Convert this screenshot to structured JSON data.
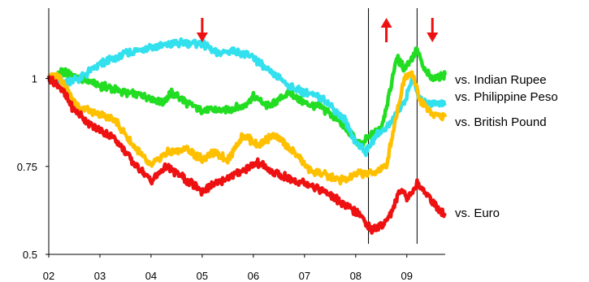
{
  "chart_data": {
    "type": "line",
    "title": "",
    "xlabel": "",
    "ylabel": "",
    "xlim": [
      2002,
      2009.75
    ],
    "ylim": [
      0.5,
      1.2
    ],
    "x_ticks": [
      {
        "value": 2002,
        "label": "02"
      },
      {
        "value": 2003,
        "label": "03"
      },
      {
        "value": 2004,
        "label": "04"
      },
      {
        "value": 2005,
        "label": "05"
      },
      {
        "value": 2006,
        "label": "06"
      },
      {
        "value": 2007,
        "label": "07"
      },
      {
        "value": 2008,
        "label": "08"
      },
      {
        "value": 2009,
        "label": "09"
      }
    ],
    "y_ticks": [
      {
        "value": 0.5,
        "label": "0.5"
      },
      {
        "value": 0.75,
        "label": "0.75"
      },
      {
        "value": 1.0,
        "label": "1"
      }
    ],
    "grid": false,
    "legend": "line-end labels at right",
    "series": [
      {
        "name": "vs. Indian Rupee",
        "color": "#22dd22",
        "x": [
          2002,
          2002.3,
          2002.6,
          2003,
          2003.5,
          2003.9,
          2004.2,
          2004.4,
          2004.7,
          2005,
          2005.4,
          2005.8,
          2006,
          2006.3,
          2006.7,
          2007,
          2007.3,
          2007.6,
          2007.9,
          2008.1,
          2008.3,
          2008.5,
          2008.65,
          2008.8,
          2008.95,
          2009.05,
          2009.2,
          2009.35,
          2009.5,
          2009.75
        ],
        "values": [
          1.0,
          1.02,
          1.0,
          0.98,
          0.96,
          0.95,
          0.93,
          0.96,
          0.93,
          0.91,
          0.91,
          0.92,
          0.95,
          0.92,
          0.96,
          0.93,
          0.92,
          0.89,
          0.84,
          0.81,
          0.84,
          0.86,
          0.95,
          1.06,
          1.03,
          1.05,
          1.08,
          1.02,
          1.0,
          1.01
        ]
      },
      {
        "name": "vs. Philippine Peso",
        "color": "#33e0ee",
        "x": [
          2002,
          2002.3,
          2002.6,
          2003,
          2003.5,
          2004,
          2004.5,
          2005,
          2005.3,
          2005.6,
          2006,
          2006.3,
          2006.7,
          2007,
          2007.4,
          2007.8,
          2008.0,
          2008.2,
          2008.4,
          2008.6,
          2008.8,
          2008.95,
          2009.1,
          2009.25,
          2009.5,
          2009.75
        ],
        "values": [
          1.0,
          0.99,
          1.0,
          1.04,
          1.07,
          1.09,
          1.1,
          1.1,
          1.07,
          1.08,
          1.06,
          1.02,
          0.98,
          0.96,
          0.94,
          0.88,
          0.82,
          0.79,
          0.84,
          0.86,
          0.9,
          0.93,
          1.0,
          0.94,
          0.93,
          0.93
        ]
      },
      {
        "name": "vs. British Pound",
        "color": "#ffc000",
        "x": [
          2002,
          2002.2,
          2002.5,
          2002.9,
          2003.3,
          2003.7,
          2004.0,
          2004.3,
          2004.7,
          2005.0,
          2005.2,
          2005.5,
          2005.8,
          2006.1,
          2006.4,
          2006.8,
          2007.1,
          2007.5,
          2007.8,
          2008.0,
          2008.3,
          2008.6,
          2008.8,
          2008.95,
          2009.1,
          2009.25,
          2009.5,
          2009.75
        ],
        "values": [
          1.0,
          1.01,
          0.93,
          0.9,
          0.88,
          0.8,
          0.75,
          0.79,
          0.8,
          0.77,
          0.79,
          0.77,
          0.84,
          0.81,
          0.84,
          0.79,
          0.74,
          0.72,
          0.71,
          0.73,
          0.73,
          0.75,
          0.9,
          1.0,
          1.02,
          0.94,
          0.9,
          0.89
        ]
      },
      {
        "name": "vs. Euro",
        "color": "#ee1111",
        "x": [
          2002,
          2002.2,
          2002.5,
          2002.9,
          2003.3,
          2003.6,
          2004.0,
          2004.3,
          2004.6,
          2005.0,
          2005.4,
          2005.8,
          2006.1,
          2006.4,
          2006.8,
          2007.1,
          2007.5,
          2007.9,
          2008.1,
          2008.3,
          2008.5,
          2008.7,
          2008.9,
          2009.0,
          2009.2,
          2009.4,
          2009.6,
          2009.75
        ],
        "values": [
          1.0,
          0.98,
          0.91,
          0.86,
          0.83,
          0.77,
          0.71,
          0.75,
          0.72,
          0.68,
          0.71,
          0.74,
          0.76,
          0.73,
          0.71,
          0.7,
          0.67,
          0.63,
          0.61,
          0.57,
          0.58,
          0.62,
          0.69,
          0.66,
          0.7,
          0.67,
          0.63,
          0.61
        ]
      }
    ],
    "event_lines": [
      2008.25,
      2009.2
    ],
    "arrows": [
      {
        "x": 2005.0,
        "direction": "down",
        "color": "#ee1111"
      },
      {
        "x": 2008.6,
        "direction": "up",
        "color": "#ee1111"
      },
      {
        "x": 2009.5,
        "direction": "down",
        "color": "#ee1111"
      }
    ]
  }
}
